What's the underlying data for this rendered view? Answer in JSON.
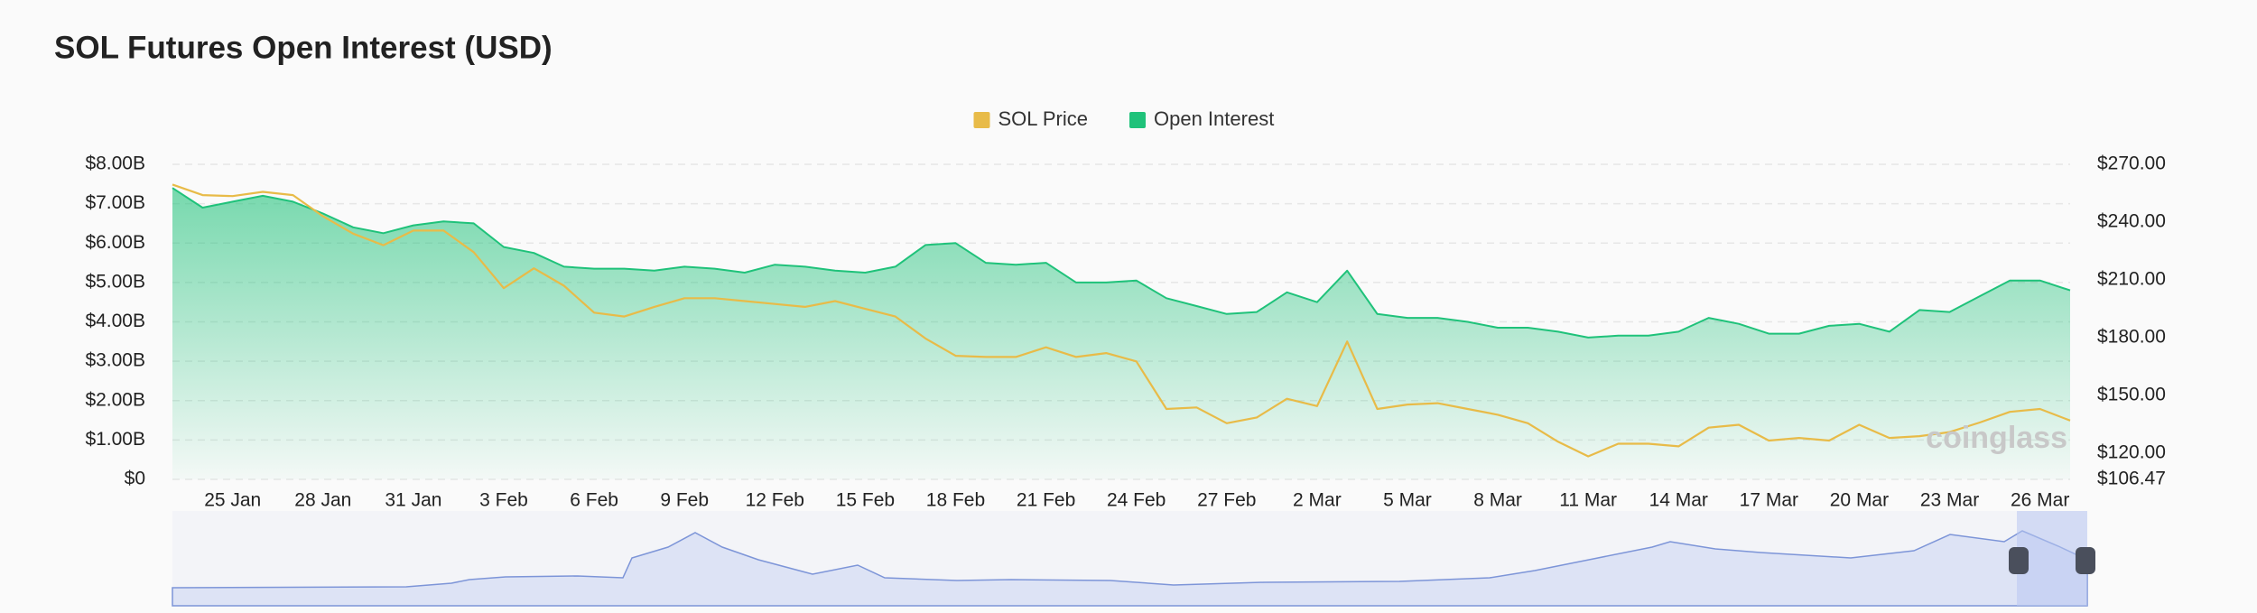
{
  "chart_data": {
    "type": "line",
    "title": "SOL Futures Open Interest (USD)",
    "watermark": "coinglass",
    "legend": "top",
    "grid": true,
    "categories": [
      null,
      null,
      "25 Jan",
      null,
      null,
      "28 Jan",
      null,
      null,
      "31 Jan",
      null,
      null,
      "3 Feb",
      null,
      null,
      "6 Feb",
      null,
      null,
      "9 Feb",
      null,
      null,
      "12 Feb",
      null,
      null,
      "15 Feb",
      null,
      null,
      "18 Feb",
      null,
      null,
      "21 Feb",
      null,
      null,
      "24 Feb",
      null,
      null,
      "27 Feb",
      null,
      null,
      "2 Mar",
      null,
      null,
      "5 Mar",
      null,
      null,
      "8 Mar",
      null,
      null,
      "11 Mar",
      null,
      null,
      "14 Mar",
      null,
      null,
      "17 Mar",
      null,
      null,
      "20 Mar",
      null,
      null,
      "23 Mar",
      null,
      null,
      "26 Mar",
      null
    ],
    "series": [
      {
        "name": "SOL Price",
        "color": "#e8bb48",
        "axis": "y2",
        "values": [
          259.5,
          254,
          253.5,
          255.7,
          254,
          243,
          234,
          228,
          235.6,
          235.6,
          224.4,
          205.7,
          216,
          207,
          193,
          191,
          196,
          200.5,
          200.5,
          199,
          197.5,
          196,
          199,
          195,
          191,
          179.6,
          170.6,
          170,
          170,
          175,
          170,
          172,
          167.7,
          143,
          143.8,
          135.6,
          138.6,
          148.3,
          144.5,
          178,
          143,
          145.3,
          146,
          143,
          140,
          135.6,
          126,
          118.4,
          125,
          125,
          123.6,
          133.3,
          134.8,
          126.6,
          128,
          126.6,
          134.8,
          128,
          128.9,
          131,
          136,
          141.5,
          143,
          137
        ]
      },
      {
        "name": "Open Interest",
        "color": "#1fc27a",
        "area": true,
        "values": [
          7.4,
          6.9,
          7.05,
          7.2,
          7.05,
          6.75,
          6.4,
          6.25,
          6.45,
          6.55,
          6.5,
          5.9,
          5.75,
          5.4,
          5.35,
          5.35,
          5.3,
          5.4,
          5.35,
          5.25,
          5.45,
          5.4,
          5.3,
          5.25,
          5.4,
          5.95,
          6.0,
          5.5,
          5.45,
          5.5,
          5.0,
          5.0,
          5.05,
          4.6,
          4.4,
          4.2,
          4.25,
          4.75,
          4.5,
          5.3,
          4.2,
          4.1,
          4.1,
          4.0,
          3.85,
          3.85,
          3.75,
          3.6,
          3.65,
          3.65,
          3.75,
          4.1,
          3.95,
          3.7,
          3.7,
          3.9,
          3.95,
          3.75,
          4.3,
          4.25,
          4.65,
          5.05,
          5.05,
          4.8
        ]
      }
    ],
    "ylim": [
      0,
      8
    ],
    "yticks": [
      {
        "value": 0,
        "label": "$0"
      },
      {
        "value": 1,
        "label": "$1.00B"
      },
      {
        "value": 2,
        "label": "$2.00B"
      },
      {
        "value": 3,
        "label": "$3.00B"
      },
      {
        "value": 4,
        "label": "$4.00B"
      },
      {
        "value": 5,
        "label": "$5.00B"
      },
      {
        "value": 6,
        "label": "$6.00B"
      },
      {
        "value": 7,
        "label": "$7.00B"
      },
      {
        "value": 8,
        "label": "$8.00B"
      }
    ],
    "y2lim": [
      106.47,
      270
    ],
    "y2ticks": [
      {
        "value": 106.47,
        "label": "$106.47"
      },
      {
        "value": 120,
        "label": "$120.00"
      },
      {
        "value": 150,
        "label": "$150.00"
      },
      {
        "value": 180,
        "label": "$180.00"
      },
      {
        "value": 210,
        "label": "$210.00"
      },
      {
        "value": 240,
        "label": "$240.00"
      },
      {
        "value": 270,
        "label": "$270.00"
      }
    ]
  }
}
